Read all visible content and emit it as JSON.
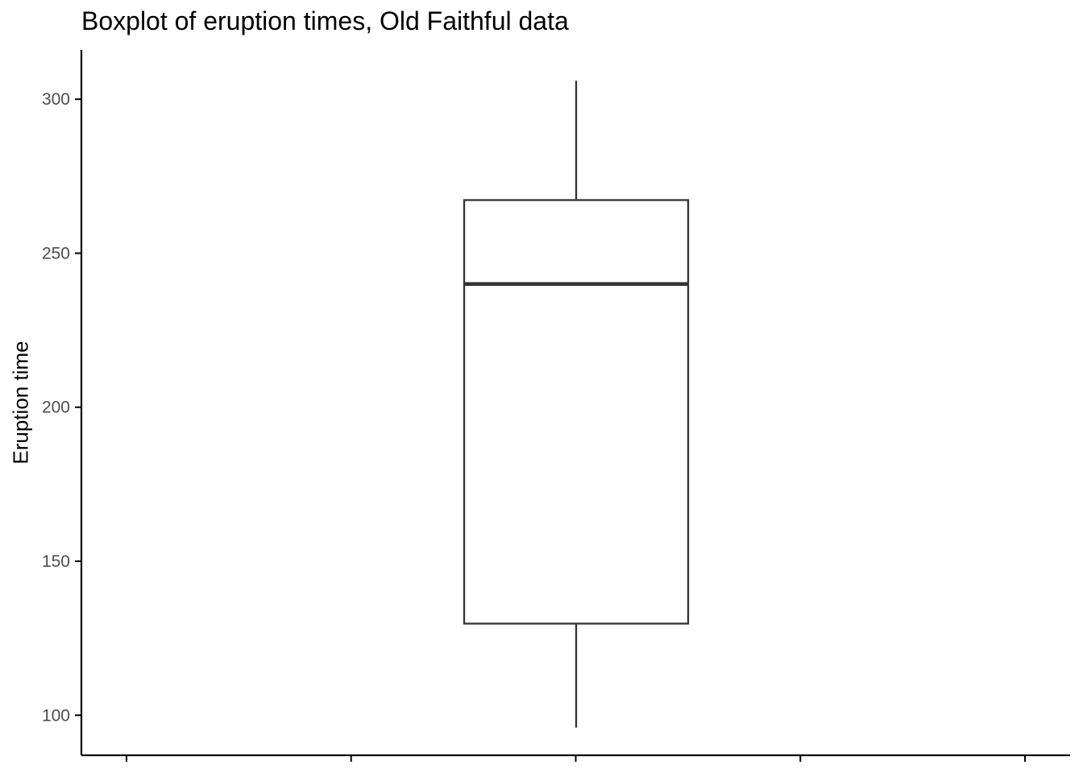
{
  "chart_data": {
    "type": "boxplot",
    "title": "Boxplot of eruption times, Old Faithful data",
    "xlabel": "",
    "ylabel": "Eruption time",
    "ylim": [
      87,
      316
    ],
    "yticks": [
      100,
      150,
      200,
      250,
      300
    ],
    "xticks_count": 5,
    "grid": false,
    "legend": "none",
    "box": {
      "min": 96,
      "q1": 129.75,
      "median": 240,
      "q3": 267.25,
      "max": 306
    },
    "colors": {
      "line": "#333333",
      "axis": "#000000",
      "tick_label": "#4d4d4d",
      "fill": "#ffffff"
    }
  }
}
